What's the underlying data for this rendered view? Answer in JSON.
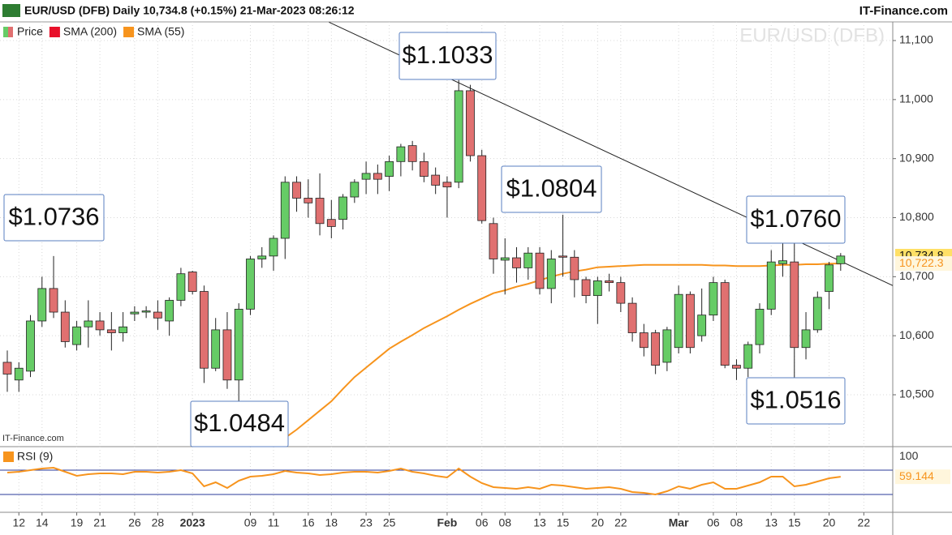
{
  "header": {
    "title": "EUR/USD (DFB) Daily 10,734.8 (+0.15%) 21-Mar-2023 08:26:12",
    "brand": "IT-Finance.com"
  },
  "chart_data": [
    {
      "type": "candlestick",
      "watermark": "EUR/USD (DFB)",
      "source": "IT-Finance.com",
      "legend": [
        {
          "name": "Price"
        },
        {
          "name": "SMA (200)",
          "color": "#e8102a"
        }
      ],
      "up_color": "#66cc66",
      "down_color": "#e07070",
      "open": [
        10555,
        10525,
        10540,
        10625,
        10680,
        10640,
        10585,
        10615,
        10625,
        10610,
        10605,
        10637,
        10640,
        10640,
        10625,
        10660,
        10708,
        10675,
        10545,
        10610,
        10525,
        10645,
        10730,
        10735,
        10765,
        10860,
        10833,
        10833,
        10797,
        10797,
        10835,
        10865,
        10875,
        10870,
        10895,
        10922,
        10895,
        10872,
        10860,
        10860,
        11015,
        10905,
        10790,
        10728,
        10732,
        10715,
        10740,
        10680,
        10735,
        10733,
        10695,
        10668,
        10693,
        10690,
        10655,
        10605,
        10605,
        10555,
        10580,
        10670,
        10600,
        10635,
        10690,
        10550,
        10545,
        10585,
        10645,
        10722,
        10725,
        10580,
        10610,
        10675,
        10722
      ],
      "high": [
        10575,
        10555,
        10635,
        10700,
        10735,
        10660,
        10625,
        10660,
        10640,
        10640,
        10640,
        10650,
        10650,
        10660,
        10665,
        10715,
        10710,
        10685,
        10630,
        10640,
        10655,
        10735,
        10750,
        10770,
        10870,
        10870,
        10865,
        10875,
        10830,
        10840,
        10865,
        10895,
        10890,
        10905,
        10925,
        10930,
        10910,
        10885,
        10870,
        11033,
        11025,
        10915,
        10800,
        10765,
        10750,
        10750,
        10750,
        10745,
        10805,
        10745,
        10700,
        10700,
        10705,
        10700,
        10665,
        10620,
        10610,
        10615,
        10685,
        10675,
        10680,
        10700,
        10695,
        10560,
        10590,
        10655,
        10745,
        10760,
        10760,
        10640,
        10675,
        10725,
        10740
      ],
      "low": [
        10505,
        10505,
        10530,
        10615,
        10630,
        10580,
        10575,
        10580,
        10600,
        10575,
        10590,
        10625,
        10630,
        10610,
        10600,
        10650,
        10670,
        10520,
        10540,
        10510,
        10485,
        10635,
        10715,
        10710,
        10730,
        10810,
        10800,
        10770,
        10765,
        10780,
        10825,
        10840,
        10840,
        10845,
        10870,
        10880,
        10860,
        10840,
        10800,
        10850,
        10895,
        10790,
        10705,
        10670,
        10690,
        10695,
        10670,
        10655,
        10700,
        10665,
        10655,
        10620,
        10675,
        10640,
        10590,
        10565,
        10535,
        10540,
        10570,
        10570,
        10590,
        10625,
        10545,
        10525,
        10530,
        10570,
        10635,
        10700,
        10516,
        10560,
        10605,
        10645,
        10710
      ],
      "close": [
        10535,
        10545,
        10625,
        10680,
        10640,
        10590,
        10615,
        10625,
        10610,
        10605,
        10615,
        10640,
        10642,
        10630,
        10660,
        10705,
        10675,
        10545,
        10610,
        10525,
        10645,
        10730,
        10735,
        10765,
        10860,
        10833,
        10825,
        10790,
        10785,
        10835,
        10860,
        10875,
        10865,
        10895,
        10920,
        10895,
        10870,
        10855,
        10852,
        11015,
        10905,
        10795,
        10730,
        10732,
        10715,
        10740,
        10680,
        10730,
        10733,
        10695,
        10668,
        10693,
        10690,
        10655,
        10605,
        10580,
        10550,
        10610,
        10670,
        10580,
        10635,
        10690,
        10550,
        10545,
        10585,
        10645,
        10725,
        10727,
        10580,
        10610,
        10665,
        10720,
        10735
      ],
      "series": [
        {
          "name": "SMA (55)",
          "color": "#f7941d",
          "values": [
            null,
            null,
            null,
            null,
            null,
            null,
            null,
            null,
            null,
            null,
            null,
            null,
            null,
            null,
            null,
            null,
            null,
            null,
            null,
            null,
            null,
            null,
            null,
            10413,
            10427,
            10441,
            10457,
            10473,
            10489,
            10510,
            10530,
            10546,
            10562,
            10578,
            10590,
            10601,
            10613,
            10623,
            10633,
            10644,
            10654,
            10663,
            10672,
            10677,
            10683,
            10688,
            10694,
            10700,
            10705,
            10709,
            10712,
            10716,
            10717,
            10718,
            10719,
            10720,
            10720,
            10720,
            10720,
            10720,
            10720,
            10719,
            10719,
            10718,
            10718,
            10718,
            10719,
            10720,
            10720,
            10721,
            10721,
            10722,
            10722.3
          ]
        }
      ],
      "trendline": {
        "start": [
          27.8,
          11131
        ],
        "end": [
          76.5,
          10685
        ]
      },
      "price_labels": [
        {
          "value": 10734.8,
          "label": "10,734.8"
        },
        {
          "value": 10722.3,
          "label": "10,722.3"
        }
      ],
      "annotations": [
        {
          "label": "$1.0736"
        },
        {
          "label": "$1.1033"
        },
        {
          "label": "$1.0804"
        },
        {
          "label": "$1.0760"
        },
        {
          "label": "$1.0484"
        },
        {
          "label": "$1.0516"
        }
      ],
      "ylim": [
        10413.5,
        11131.6
      ],
      "yticks": [
        {
          "value": 10500,
          "label": "10,500"
        },
        {
          "value": 10600,
          "label": "10,600"
        },
        {
          "value": 10700,
          "label": "10,700"
        },
        {
          "value": 10800,
          "label": "10,800"
        },
        {
          "value": 10900,
          "label": "10,900"
        },
        {
          "value": 11000,
          "label": "11,000"
        },
        {
          "value": 11100,
          "label": "11,100"
        }
      ],
      "xlim": [
        -0.63,
        76.5
      ],
      "xticks": [
        {
          "value": 1,
          "label": "12"
        },
        {
          "value": 3,
          "label": "14"
        },
        {
          "value": 6,
          "label": "19"
        },
        {
          "value": 8,
          "label": "21"
        },
        {
          "value": 11,
          "label": "26"
        },
        {
          "value": 13,
          "label": "28"
        },
        {
          "value": 16,
          "label": "2023"
        },
        {
          "value": 21,
          "label": "09"
        },
        {
          "value": 23,
          "label": "11"
        },
        {
          "value": 26,
          "label": "16"
        },
        {
          "value": 28,
          "label": "18"
        },
        {
          "value": 31,
          "label": "23"
        },
        {
          "value": 33,
          "label": "25"
        },
        {
          "value": 38,
          "label": "Feb"
        },
        {
          "value": 41,
          "label": "06"
        },
        {
          "value": 43,
          "label": "08"
        },
        {
          "value": 46,
          "label": "13"
        },
        {
          "value": 48,
          "label": "15"
        },
        {
          "value": 51,
          "label": "20"
        },
        {
          "value": 53,
          "label": "22"
        },
        {
          "value": 58,
          "label": "Mar"
        },
        {
          "value": 61,
          "label": "06"
        },
        {
          "value": 63,
          "label": "08"
        },
        {
          "value": 66,
          "label": "13"
        },
        {
          "value": 68,
          "label": "15"
        },
        {
          "value": 71,
          "label": "20"
        },
        {
          "value": 74,
          "label": "22"
        }
      ],
      "grid": true
    },
    {
      "type": "line",
      "name": "RSI (9)",
      "color": "#f7941d",
      "values": [
        66.0,
        67.3,
        70.0,
        72.7,
        74.0,
        67.3,
        60.7,
        63.3,
        64.7,
        64.7,
        63.3,
        67.3,
        67.3,
        66.0,
        67.3,
        70.0,
        64.7,
        43.3,
        50.0,
        40.7,
        52.7,
        59.3,
        60.7,
        63.3,
        68.7,
        66.0,
        64.7,
        62.0,
        63.3,
        66.0,
        67.3,
        67.3,
        66.0,
        68.7,
        72.7,
        67.3,
        64.7,
        60.7,
        58.0,
        72.7,
        59.3,
        48.7,
        42.0,
        40.7,
        39.3,
        42.0,
        39.3,
        46.0,
        44.7,
        42.0,
        39.3,
        40.7,
        42.0,
        39.3,
        34.0,
        32.7,
        30.0,
        35.3,
        43.3,
        39.3,
        46.0,
        50.0,
        39.3,
        39.3,
        44.7,
        50.0,
        59.3,
        59.3,
        43.3,
        46.0,
        51.3,
        56.7,
        59.144
      ],
      "value_label": "59.144",
      "levels": [
        70,
        30
      ],
      "ylim": [
        0,
        100
      ],
      "yticks": [
        100
      ]
    }
  ]
}
